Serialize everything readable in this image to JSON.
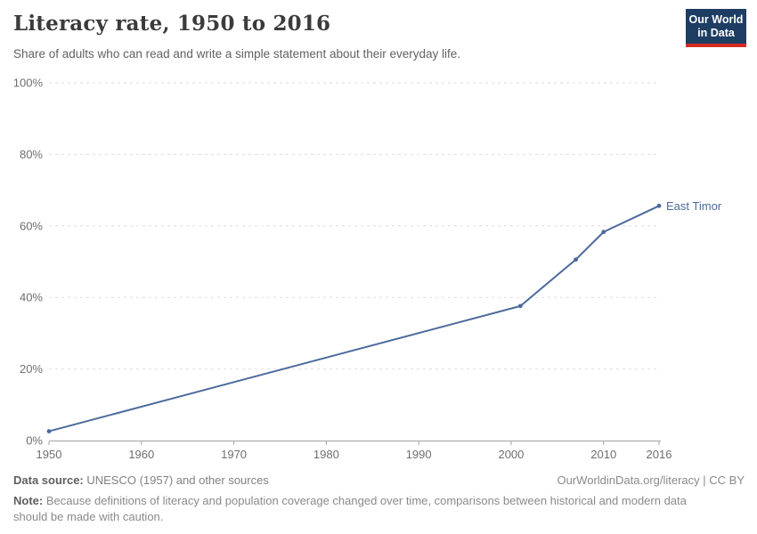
{
  "header": {
    "title": "Literacy rate, 1950 to 2016",
    "subtitle": "Share of adults who can read and write a simple statement about their everyday life.",
    "logo": {
      "line1": "Our World",
      "line2": "in Data",
      "bg_color": "#1d3d63",
      "accent_color": "#d42b21",
      "text_color": "#ffffff"
    }
  },
  "chart_data": {
    "type": "line",
    "title": "Literacy rate, 1950 to 2016",
    "xlabel": "",
    "ylabel": "",
    "x": [
      1950,
      2001,
      2007,
      2010,
      2016
    ],
    "series": [
      {
        "name": "East Timor",
        "color": "#4c6a9c",
        "values": [
          2.6,
          37.6,
          50.6,
          58.3,
          65.6
        ]
      }
    ],
    "xlim": [
      1950,
      2016
    ],
    "ylim": [
      0,
      100
    ],
    "x_ticks": [
      1950,
      1960,
      1970,
      1980,
      1990,
      2000,
      2010,
      2016
    ],
    "y_ticks": [
      0,
      20,
      40,
      60,
      80,
      100
    ],
    "y_tick_suffix": "%",
    "grid": "horizontal-dashed",
    "legend": "end-of-line-label"
  },
  "colors": {
    "grid": "#dedede",
    "axis": "#a3a3a3",
    "tick_label": "#6e6e6e",
    "title": "#3b3b3b",
    "subtitle": "#616161"
  },
  "footer": {
    "source_label": "Data source:",
    "source_text": " UNESCO (1957) and other sources",
    "link_text": "OurWorldinData.org/literacy | CC BY",
    "note_label": "Note:",
    "note_text": " Because definitions of literacy and population coverage changed over time, comparisons between historical and modern data should be made with caution."
  }
}
